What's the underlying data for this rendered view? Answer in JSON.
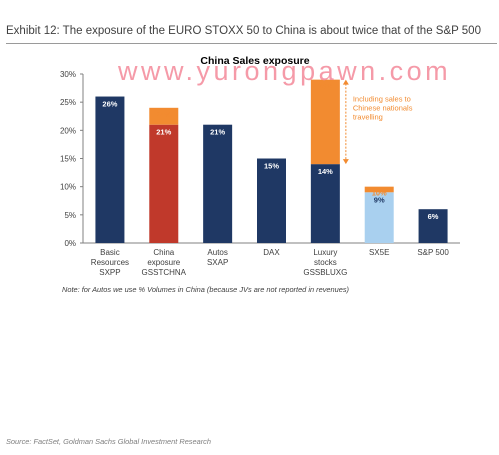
{
  "header": {
    "exhibit_title": "Exhibit 12: The exposure of the EURO STOXX 50 to China is about twice that of the S&P 500"
  },
  "note": "Note: for Autos we use % Volumes in China (because JVs are not reported in revenues)",
  "source": "Source: FactSet, Goldman Sachs Global Investment Research",
  "watermark": "www.yurongpawn.com",
  "chart_data": {
    "type": "bar",
    "stacked": true,
    "title": "China Sales exposure",
    "xlabel": "",
    "ylabel": "",
    "ylim": [
      0,
      30
    ],
    "yticks": [
      "0%",
      "5%",
      "10%",
      "15%",
      "20%",
      "25%",
      "30%"
    ],
    "grid": false,
    "categories": [
      [
        "Basic",
        "Resources",
        "SXPP"
      ],
      [
        "China",
        "exposure",
        "GSSTCHNA"
      ],
      [
        "Autos",
        "SXAP"
      ],
      [
        "DAX"
      ],
      [
        "Luxury",
        "stocks",
        "GSSBLUXG"
      ],
      [
        "SX5E"
      ],
      [
        "S&P 500"
      ]
    ],
    "series": [
      {
        "values": [
          26,
          21,
          21,
          15,
          14,
          9,
          6
        ],
        "labels": [
          "26%",
          "21%",
          "21%",
          "15%",
          "14%",
          "9%",
          "6%"
        ],
        "colors": [
          "#1f3864",
          "#c0392b",
          "#1f3864",
          "#1f3864",
          "#1f3864",
          "#a9d0ef",
          "#1f3864"
        ],
        "label_colors": [
          "#ffffff",
          "#ffffff",
          "#ffffff",
          "#ffffff",
          "#ffffff",
          "#1f3864",
          "#ffffff"
        ]
      },
      {
        "values": [
          null,
          3,
          null,
          null,
          15,
          1,
          null
        ],
        "labels": [
          "",
          "24%",
          "",
          "",
          "29%",
          "10%",
          ""
        ],
        "colors": [
          "#f28b30",
          "#f28b30",
          "#f28b30",
          "#f28b30",
          "#f28b30",
          "#f28b30",
          "#f28b30"
        ],
        "label_colors": [
          "#f28b30",
          "#f28b30",
          "#f28b30",
          "#f28b30",
          "#f28b30",
          "#f28b30",
          "#f28b30"
        ]
      }
    ],
    "annotation": {
      "lines": [
        "Including sales to",
        "Chinese nationals",
        "travelling"
      ],
      "color": "#f28b30"
    }
  }
}
